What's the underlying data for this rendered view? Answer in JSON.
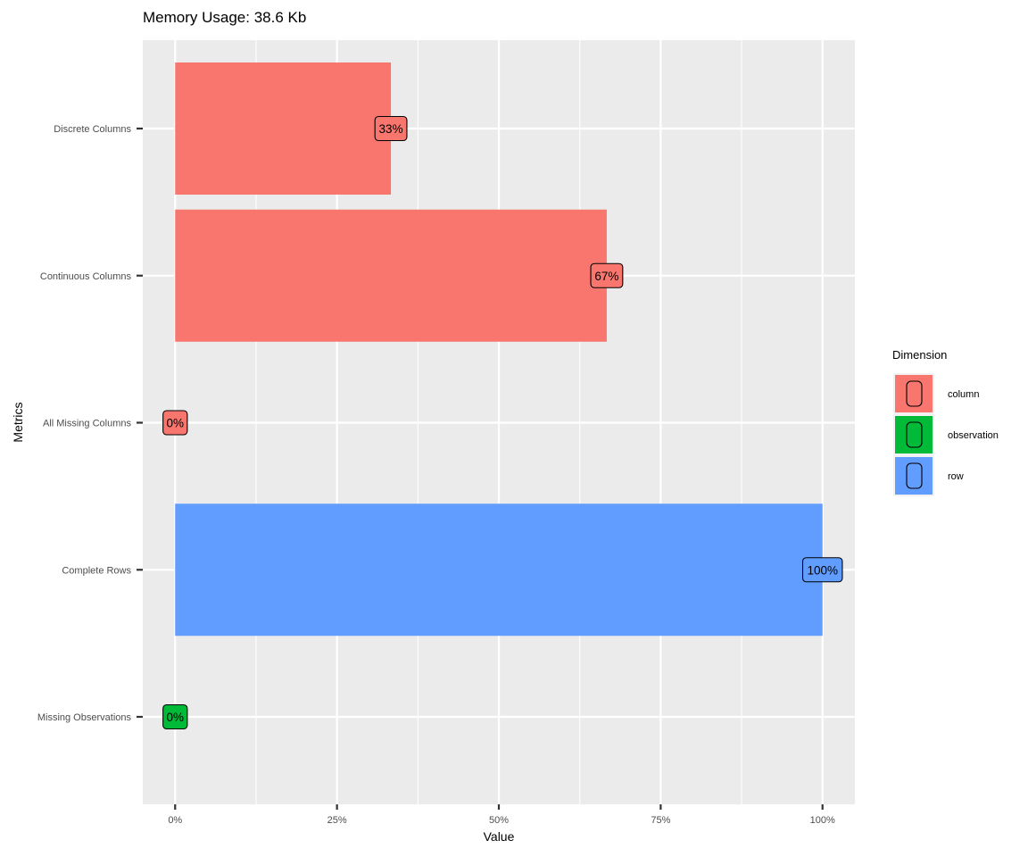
{
  "chart_data": {
    "type": "bar",
    "orientation": "horizontal",
    "title": "Memory Usage: 38.6 Kb",
    "xlabel": "Value",
    "ylabel": "Metrics",
    "xlim": [
      -0.05,
      1.05
    ],
    "x_ticks": [
      0,
      0.25,
      0.5,
      0.75,
      1.0
    ],
    "x_tick_labels": [
      "0%",
      "25%",
      "50%",
      "75%",
      "100%"
    ],
    "grid": true,
    "legend": {
      "title": "Dimension",
      "placement": "right",
      "entries": [
        {
          "name": "column",
          "color": "#F8766D"
        },
        {
          "name": "observation",
          "color": "#00BA38"
        },
        {
          "name": "row",
          "color": "#619CFF"
        }
      ]
    },
    "categories": [
      "Discrete Columns",
      "Continuous Columns",
      "All Missing Columns",
      "Complete Rows",
      "Missing Observations"
    ],
    "bars": [
      {
        "metric": "Discrete Columns",
        "value": 0.3333,
        "label": "33%",
        "dimension": "column"
      },
      {
        "metric": "Continuous Columns",
        "value": 0.6667,
        "label": "67%",
        "dimension": "column"
      },
      {
        "metric": "All Missing Columns",
        "value": 0,
        "label": "0%",
        "dimension": "column"
      },
      {
        "metric": "Complete Rows",
        "value": 1.0,
        "label": "100%",
        "dimension": "row"
      },
      {
        "metric": "Missing Observations",
        "value": 0,
        "label": "0%",
        "dimension": "observation"
      }
    ]
  }
}
